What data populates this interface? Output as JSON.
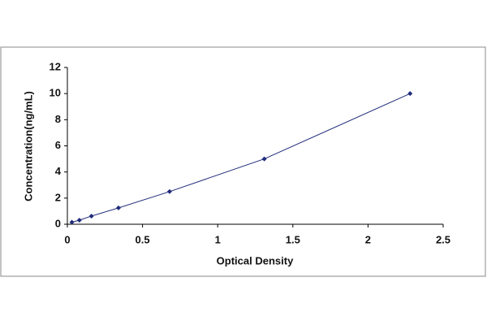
{
  "chart_data": {
    "type": "scatter",
    "x_label": "Optical Density",
    "y_label": "Concentration(ng/mL)",
    "x": [
      0.03,
      0.08,
      0.16,
      0.34,
      0.68,
      1.31,
      2.28
    ],
    "values": [
      0.156,
      0.312,
      0.625,
      1.25,
      2.5,
      5,
      10
    ],
    "color": "#1f2a7a",
    "line": true,
    "xlim": [
      0,
      2.5
    ],
    "xticks": [
      0,
      0.5,
      1,
      1.5,
      2,
      2.5
    ],
    "ylim": [
      0,
      12
    ],
    "yticks": [
      0,
      2,
      4,
      6,
      8,
      10,
      12
    ],
    "grid": false
  }
}
